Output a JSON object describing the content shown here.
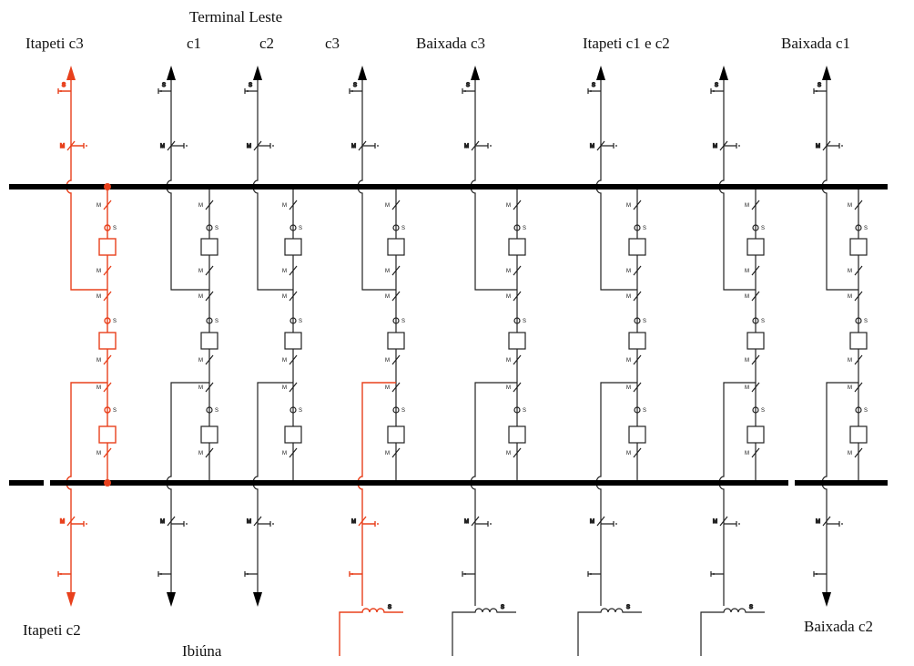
{
  "header": {
    "group": "Terminal Leste"
  },
  "top_labels": [
    "Itapeti c3",
    "c1",
    "c2",
    "c3",
    "Baixada c3",
    "Itapeti c1 e c2",
    "Baixada c1"
  ],
  "bottom_labels": [
    "Itapeti c2",
    "Ibiúna",
    "Baixada c2"
  ],
  "symbols": {
    "motor": "M",
    "current": "S"
  }
}
